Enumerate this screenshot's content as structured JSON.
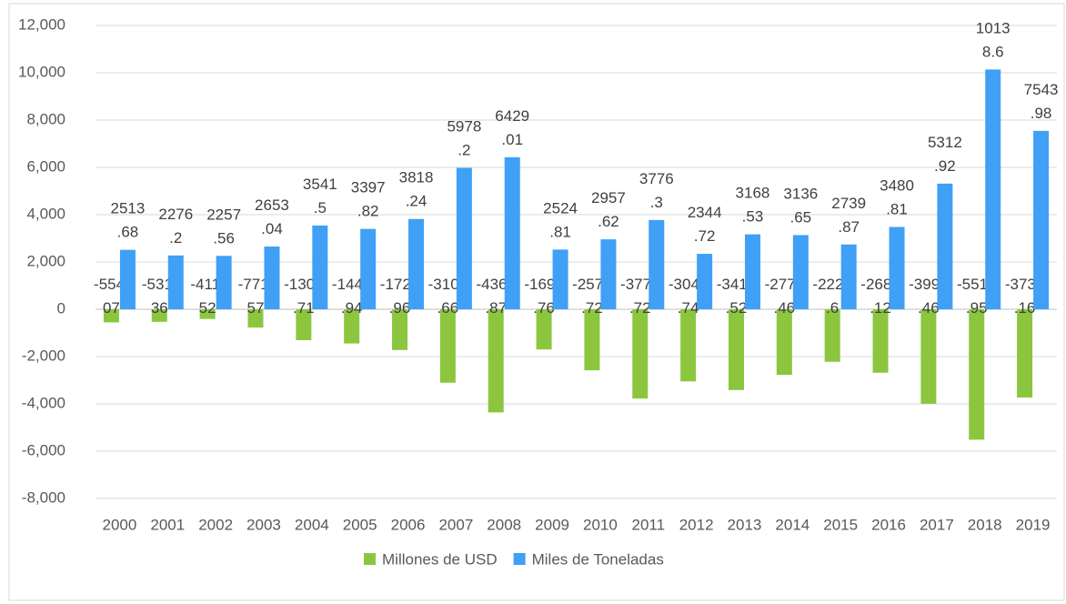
{
  "chart_data": {
    "type": "bar",
    "categories": [
      "2000",
      "2001",
      "2002",
      "2003",
      "2004",
      "2005",
      "2006",
      "2007",
      "2008",
      "2009",
      "2010",
      "2011",
      "2012",
      "2013",
      "2014",
      "2015",
      "2016",
      "2017",
      "2018",
      "2019"
    ],
    "series": [
      {
        "name": "Millones de USD",
        "color": "#8cc63f",
        "values": [
          -554.07,
          -531.36,
          -411.52,
          -771.57,
          -1305.71,
          -1445.94,
          -1723.96,
          -3105.66,
          -4361.87,
          -1699.76,
          -2578.72,
          -3772.72,
          -3048.74,
          -3416.52,
          -2770.46,
          -2220.6,
          -2683.12,
          -3996.46,
          -5513.95,
          -3730.16
        ]
      },
      {
        "name": "Miles de Toneladas",
        "color": "#3fa0f5",
        "values": [
          2513.68,
          2276.2,
          2257.56,
          2653.04,
          3541.5,
          3397.82,
          3818.24,
          5978.2,
          6429.01,
          2524.81,
          2957.62,
          3776.3,
          2344.72,
          3168.53,
          3136.65,
          2739.87,
          3480.81,
          5312.92,
          10138.6,
          7543.98
        ]
      }
    ],
    "ylim": [
      -8000,
      12000
    ],
    "yticks": [
      {
        "value": 12000,
        "label": "12,000"
      },
      {
        "value": 10000,
        "label": "10,000"
      },
      {
        "value": 8000,
        "label": "8,000"
      },
      {
        "value": 6000,
        "label": "6,000"
      },
      {
        "value": 4000,
        "label": "4,000"
      },
      {
        "value": 2000,
        "label": "2,000"
      },
      0,
      {
        "value": -2000,
        "label": "-2,000"
      },
      {
        "value": -4000,
        "label": "-4,000"
      },
      {
        "value": -6000,
        "label": "-6,000"
      },
      {
        "value": -8000,
        "label": "-8,000"
      }
    ],
    "grid": true,
    "legend": "bottom"
  }
}
